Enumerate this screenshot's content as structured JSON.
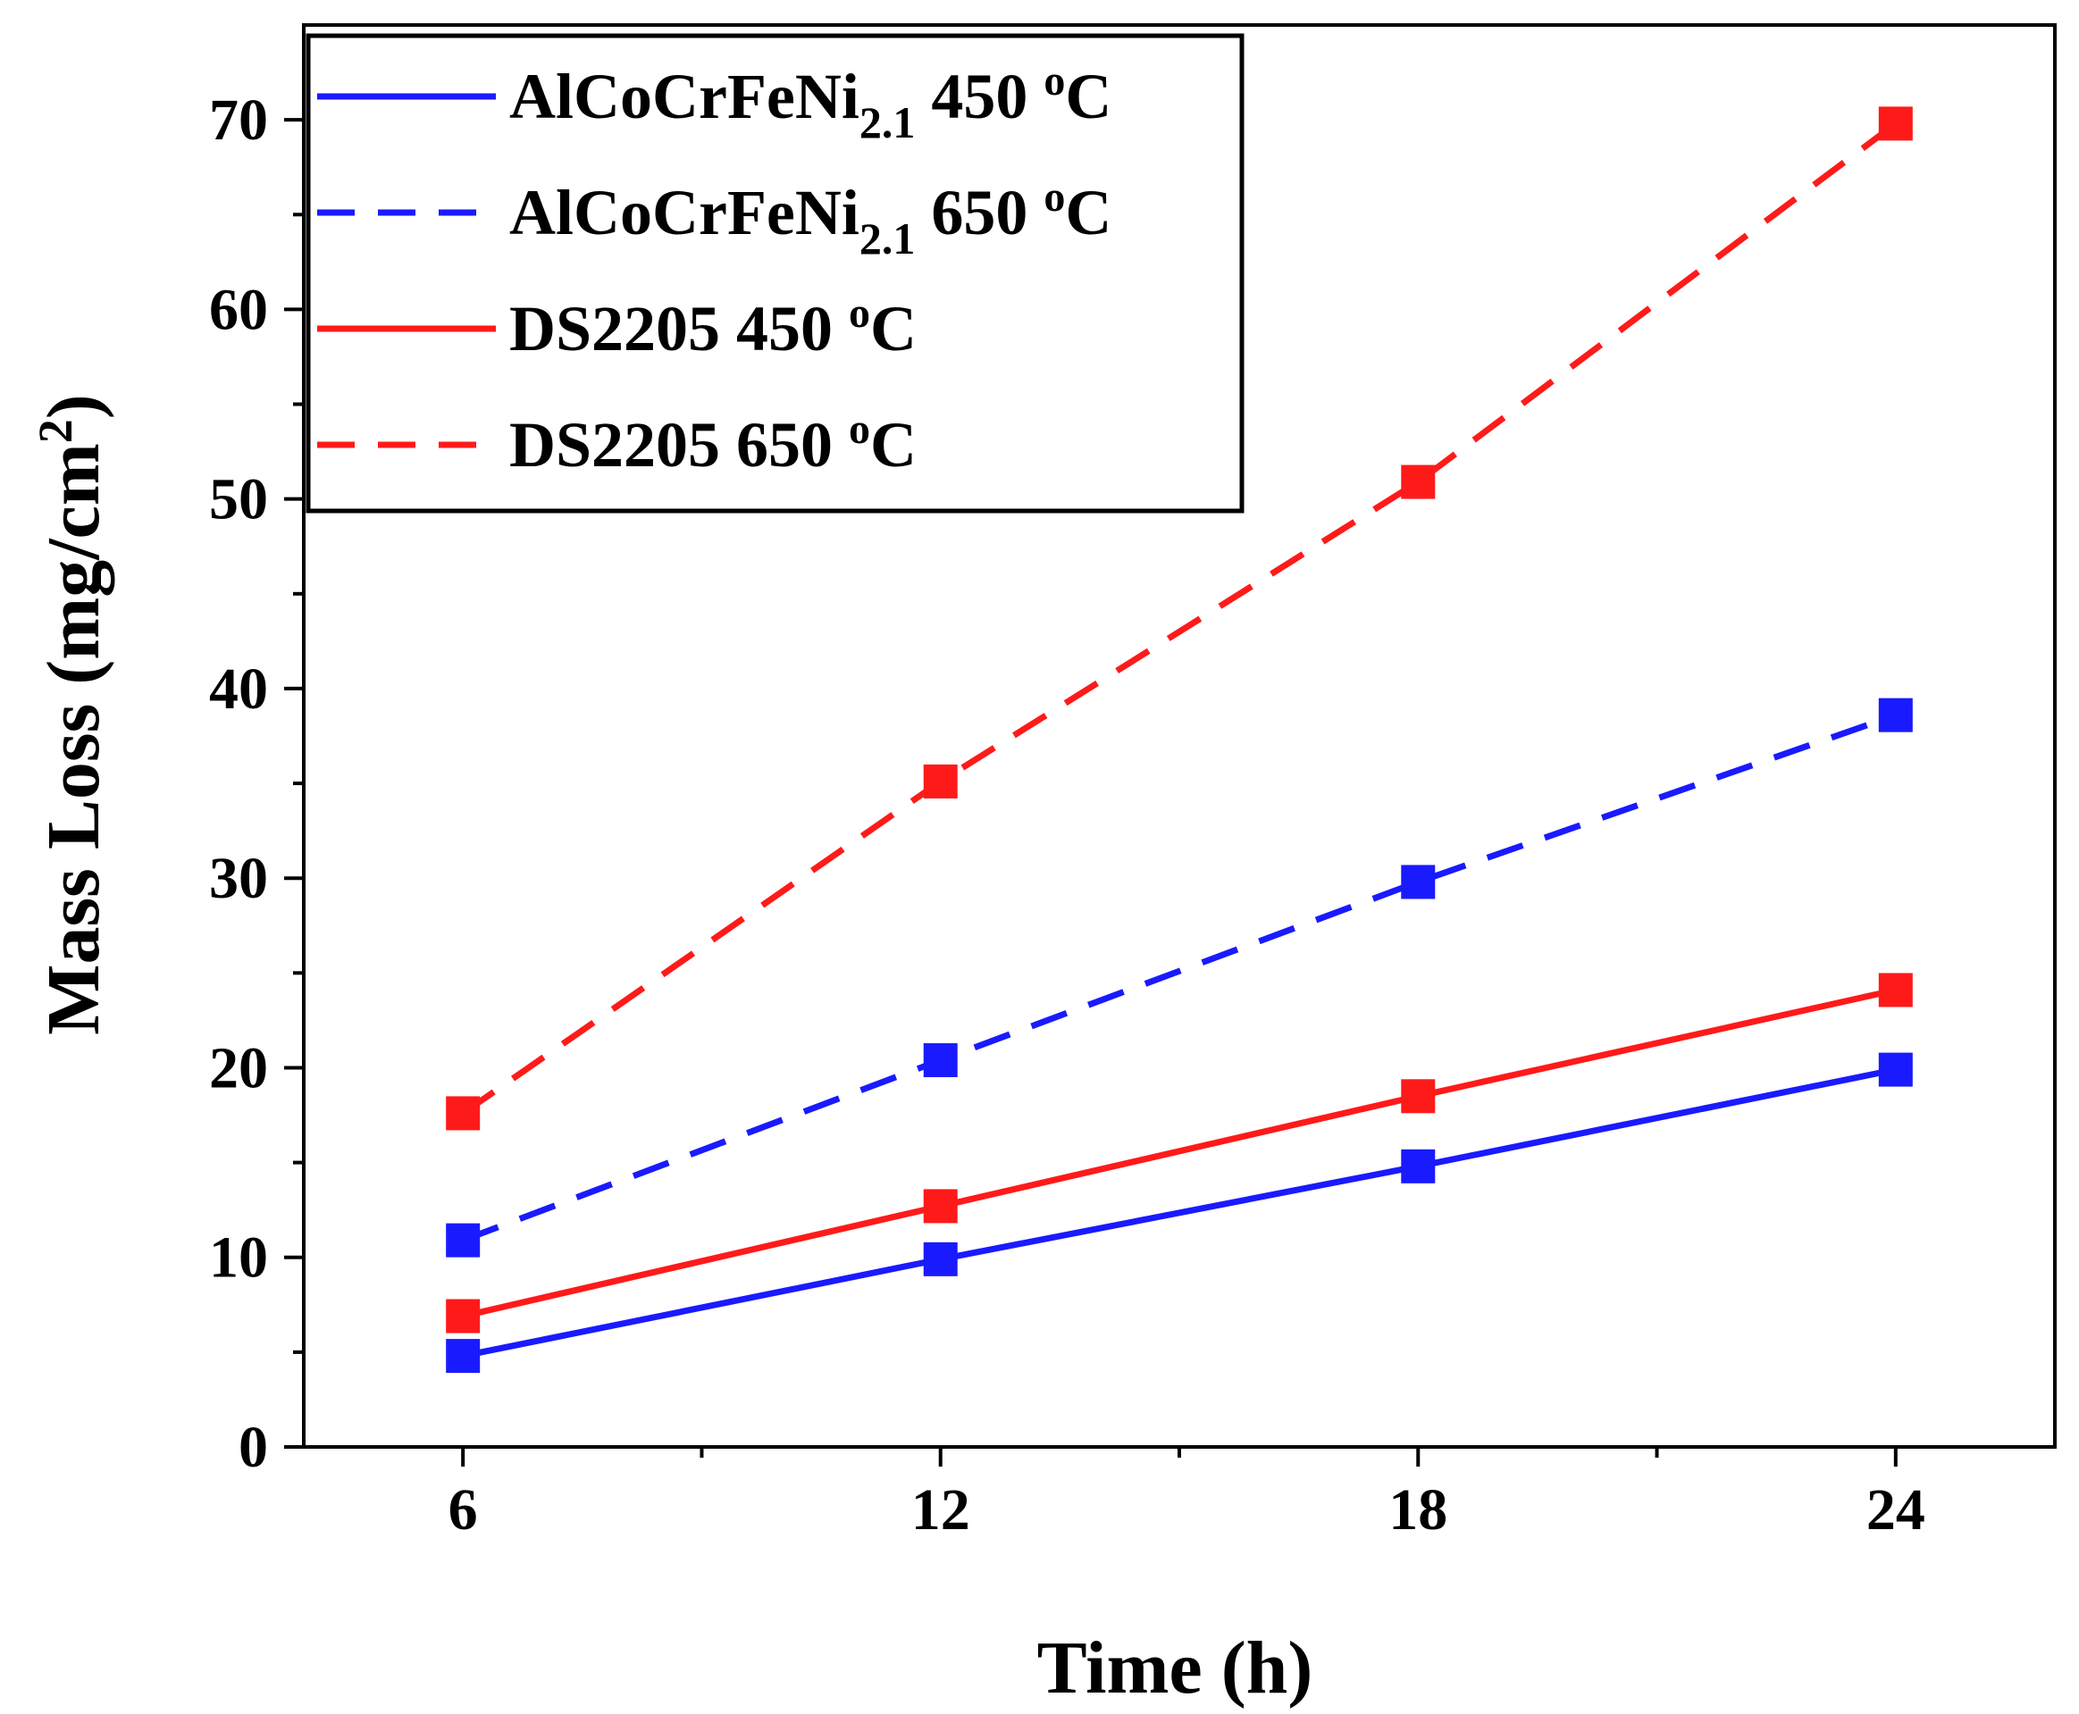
{
  "chart_data": {
    "type": "line",
    "title": "",
    "xlabel": "Time (h)",
    "ylabel_prefix": "Mass Loss (mg/cm",
    "ylabel_sup": "2",
    "ylabel_suffix": ")",
    "x": [
      6,
      12,
      18,
      24
    ],
    "xticks": [
      "6",
      "12",
      "18",
      "24"
    ],
    "xlim": [
      4,
      26
    ],
    "ylim": [
      0,
      75
    ],
    "yticks": [
      "0",
      "10",
      "20",
      "30",
      "40",
      "50",
      "60",
      "70"
    ],
    "legend_position": "top-left",
    "series": [
      {
        "name": "AlCoCrFeNi2.1 450 oC",
        "label_main": "AlCoCrFeNi",
        "label_sub": "2.1",
        "label_temp": " 450 ",
        "label_deg": "o",
        "label_unit": "C",
        "color": "#1a1aff",
        "dash": "solid",
        "values": [
          4.8,
          9.9,
          14.8,
          19.9
        ]
      },
      {
        "name": "AlCoCrFeNi2.1 650 oC",
        "label_main": "AlCoCrFeNi",
        "label_sub": "2.1",
        "label_temp": " 650 ",
        "label_deg": "o",
        "label_unit": "C",
        "color": "#1a1aff",
        "dash": "dashed",
        "values": [
          10.9,
          20.4,
          29.8,
          38.6
        ]
      },
      {
        "name": "DS2205 450 oC",
        "label_main": "DS2205",
        "label_sub": "",
        "label_temp": " 450 ",
        "label_deg": "o",
        "label_unit": "C",
        "color": "#ff1a1a",
        "dash": "solid",
        "values": [
          6.9,
          12.7,
          18.5,
          24.1
        ]
      },
      {
        "name": "DS2205 650 oC",
        "label_main": "DS2205",
        "label_sub": "",
        "label_temp": " 650 ",
        "label_deg": "o",
        "label_unit": "C",
        "color": "#ff1a1a",
        "dash": "dashed",
        "values": [
          17.6,
          35.1,
          50.9,
          69.8
        ]
      }
    ]
  }
}
